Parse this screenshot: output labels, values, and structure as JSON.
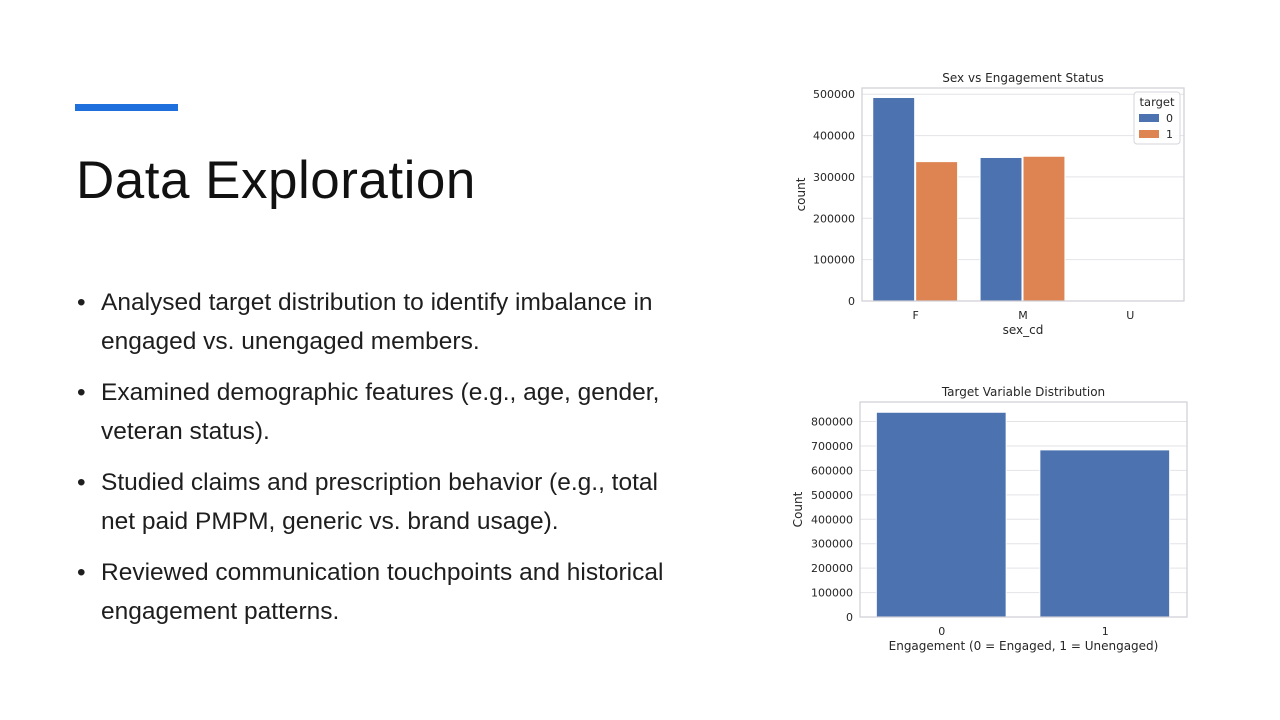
{
  "slide": {
    "title": "Data Exploration",
    "accent_color": "#1f6fdc",
    "bullets": [
      "Analysed target distribution to identify imbalance in engaged vs. unengaged members.",
      "Examined demographic features (e.g., age, gender, veteran status).",
      "Studied claims and prescription behavior (e.g., total net paid PMPM, generic vs. brand usage).",
      "Reviewed communication touchpoints and historical engagement patterns."
    ]
  },
  "chart_data": [
    {
      "type": "bar",
      "title": "Sex vs Engagement Status",
      "xlabel": "sex_cd",
      "ylabel": "count",
      "categories": [
        "F",
        "M",
        "U"
      ],
      "series": [
        {
          "name": "0",
          "color": "#4c72b0",
          "values": [
            492000,
            347000,
            0
          ]
        },
        {
          "name": "1",
          "color": "#dd8452",
          "values": [
            337000,
            350000,
            0
          ]
        }
      ],
      "ylim": [
        0,
        515000
      ],
      "yticks": [
        0,
        100000,
        200000,
        300000,
        400000,
        500000
      ],
      "legend": {
        "title": "target",
        "placement": "top-right"
      },
      "grid": true
    },
    {
      "type": "bar",
      "title": "Target Variable Distribution",
      "xlabel": "Engagement (0 = Engaged, 1 = Unengaged)",
      "ylabel": "Count",
      "categories": [
        "0",
        "1"
      ],
      "series": [
        {
          "color": "#4c72b0",
          "values": [
            838000,
            684000
          ]
        }
      ],
      "ylim": [
        0,
        880000
      ],
      "yticks": [
        0,
        100000,
        200000,
        300000,
        400000,
        500000,
        600000,
        700000,
        800000
      ],
      "grid": true
    }
  ]
}
